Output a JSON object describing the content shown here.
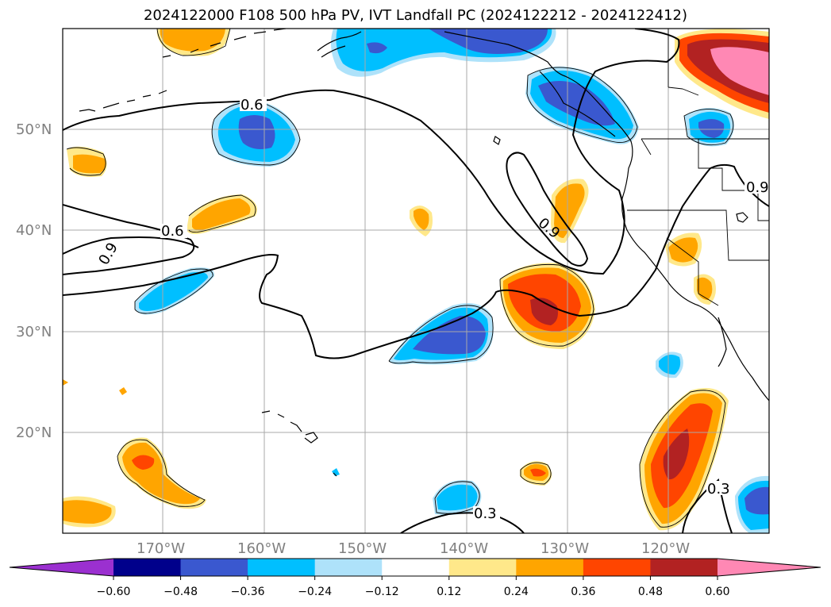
{
  "title": "2024122000 F108 500 hPa PV, IVT Landfall PC (2024122212 - 2024122412)",
  "lat_labels": [
    "50°N",
    "40°N",
    "30°N",
    "20°N"
  ],
  "lon_labels": [
    "170°W",
    "160°W",
    "150°W",
    "140°W",
    "130°W",
    "120°W"
  ],
  "contour_labels": [
    "0.6",
    "0.6",
    "0.9",
    "0.9",
    "0.9",
    "0.3",
    "0.3"
  ],
  "colorbar": {
    "tick_labels": [
      "−0.60",
      "−0.48",
      "−0.36",
      "−0.24",
      "−0.12",
      "0.12",
      "0.24",
      "0.36",
      "0.48",
      "0.60"
    ],
    "colors": [
      "#9b30d0",
      "#00008b",
      "#3a58cf",
      "#00bfff",
      "#aee2fa",
      "#ffffff",
      "#ffe88a",
      "#ffa500",
      "#ff4500",
      "#b22222",
      "#ff88b4"
    ]
  },
  "fill_colors": {
    "neg_light": "#aee2fa",
    "neg_mid": "#00bfff",
    "neg_dark": "#3a58cf",
    "pos_light": "#ffe88a",
    "pos_mid": "#ffa500",
    "pos_strong": "#ff4500",
    "pos_dark": "#b22222",
    "pos_max": "#ff88b4"
  }
}
